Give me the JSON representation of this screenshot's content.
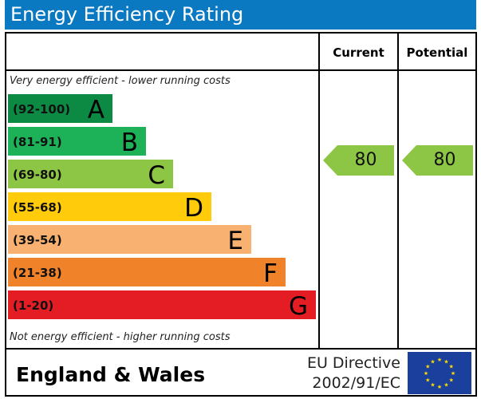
{
  "header": {
    "title": "Energy Efficiency Rating"
  },
  "columns": {
    "current": "Current",
    "potential": "Potential"
  },
  "notes": {
    "top": "Very energy efficient - lower running costs",
    "bottom": "Not energy efficient - higher running costs"
  },
  "chart_data": {
    "type": "bar",
    "title": "Energy Efficiency Rating",
    "bands": [
      {
        "range": "(92-100)",
        "letter": "A",
        "min": 92,
        "max": 100,
        "color": "#0c8a44"
      },
      {
        "range": "(81-91)",
        "letter": "B",
        "min": 81,
        "max": 91,
        "color": "#1db158"
      },
      {
        "range": "(69-80)",
        "letter": "C",
        "min": 69,
        "max": 80,
        "color": "#8dc544"
      },
      {
        "range": "(55-68)",
        "letter": "D",
        "min": 55,
        "max": 68,
        "color": "#ffcb0a"
      },
      {
        "range": "(39-54)",
        "letter": "E",
        "min": 39,
        "max": 54,
        "color": "#f8b170"
      },
      {
        "range": "(21-38)",
        "letter": "F",
        "min": 21,
        "max": 38,
        "color": "#f0822a"
      },
      {
        "range": "(1-20)",
        "letter": "G",
        "min": 1,
        "max": 20,
        "color": "#e31d23"
      }
    ],
    "current": {
      "value": "80",
      "color": "#8dc544"
    },
    "potential": {
      "value": "80",
      "color": "#8dc544"
    }
  },
  "footer": {
    "region": "England & Wales",
    "directive_line1": "EU Directive",
    "directive_line2": "2002/91/EC"
  }
}
